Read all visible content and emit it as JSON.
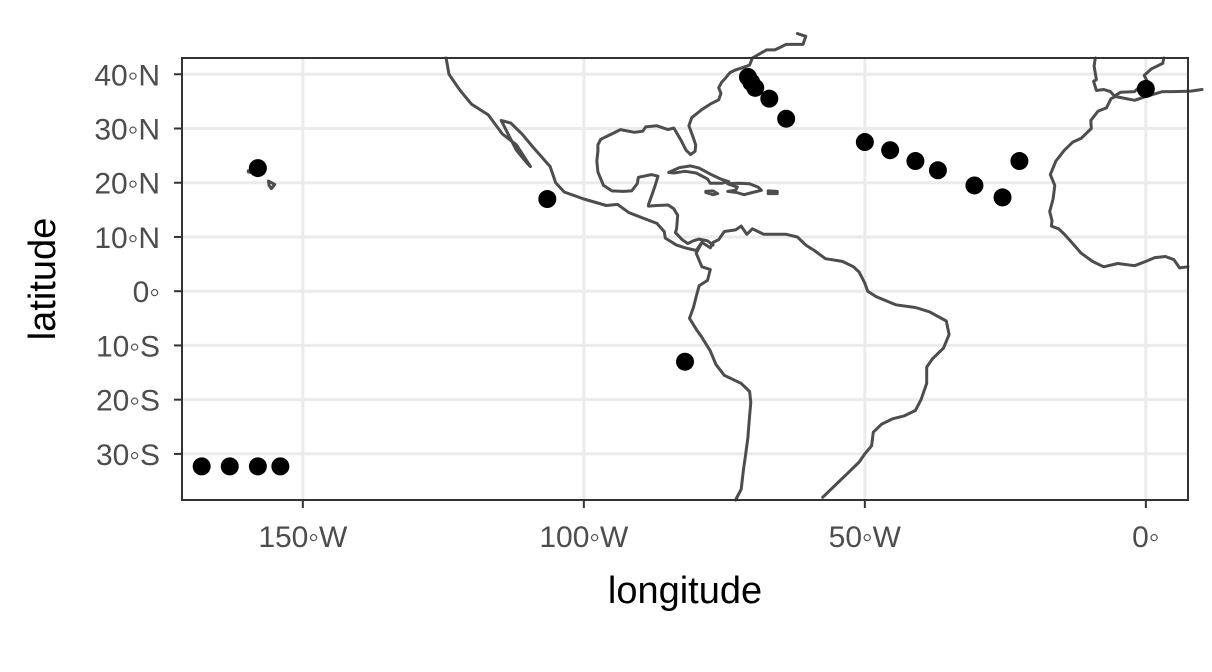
{
  "chart_data": {
    "type": "scatter",
    "xlabel": "longitude",
    "ylabel": "latitude",
    "xlim": [
      -171.5,
      7.5
    ],
    "ylim": [
      -38.5,
      43
    ],
    "grid": true,
    "x_ticks": [
      {
        "value": -150,
        "label": "150◦W"
      },
      {
        "value": -100,
        "label": "100◦W"
      },
      {
        "value": -50,
        "label": "50◦W"
      },
      {
        "value": 0,
        "label": "0◦"
      }
    ],
    "y_ticks": [
      {
        "value": 40,
        "label": "40◦N"
      },
      {
        "value": 30,
        "label": "30◦N"
      },
      {
        "value": 20,
        "label": "20◦N"
      },
      {
        "value": 10,
        "label": "10◦N"
      },
      {
        "value": 0,
        "label": "0◦"
      },
      {
        "value": -10,
        "label": "10◦S"
      },
      {
        "value": -20,
        "label": "20◦S"
      },
      {
        "value": -30,
        "label": "30◦S"
      }
    ],
    "points": [
      {
        "x": -158.0,
        "y": 22.7
      },
      {
        "x": -106.5,
        "y": 17.0
      },
      {
        "x": -82.0,
        "y": -13.0
      },
      {
        "x": -70.8,
        "y": 39.5
      },
      {
        "x": -70.2,
        "y": 38.5
      },
      {
        "x": -69.5,
        "y": 37.5
      },
      {
        "x": -67.0,
        "y": 35.5
      },
      {
        "x": -64.0,
        "y": 31.8
      },
      {
        "x": -50.0,
        "y": 27.5
      },
      {
        "x": -45.5,
        "y": 26.0
      },
      {
        "x": -41.0,
        "y": 24.0
      },
      {
        "x": -37.0,
        "y": 22.3
      },
      {
        "x": -30.5,
        "y": 19.5
      },
      {
        "x": -25.5,
        "y": 17.3
      },
      {
        "x": -22.5,
        "y": 24.0
      },
      {
        "x": 0.0,
        "y": 37.3
      },
      {
        "x": -163.0,
        "y": -32.3
      },
      {
        "x": -158.0,
        "y": -32.3
      },
      {
        "x": -154.0,
        "y": -32.3
      },
      {
        "x": -168.0,
        "y": -32.3
      }
    ],
    "colors": {
      "point": "#000000",
      "coastline": "#4d4d4d",
      "grid": "#ebebeb",
      "panel_border": "#333333",
      "tick_label": "#4d4d4d",
      "axis_title": "#000000"
    }
  }
}
